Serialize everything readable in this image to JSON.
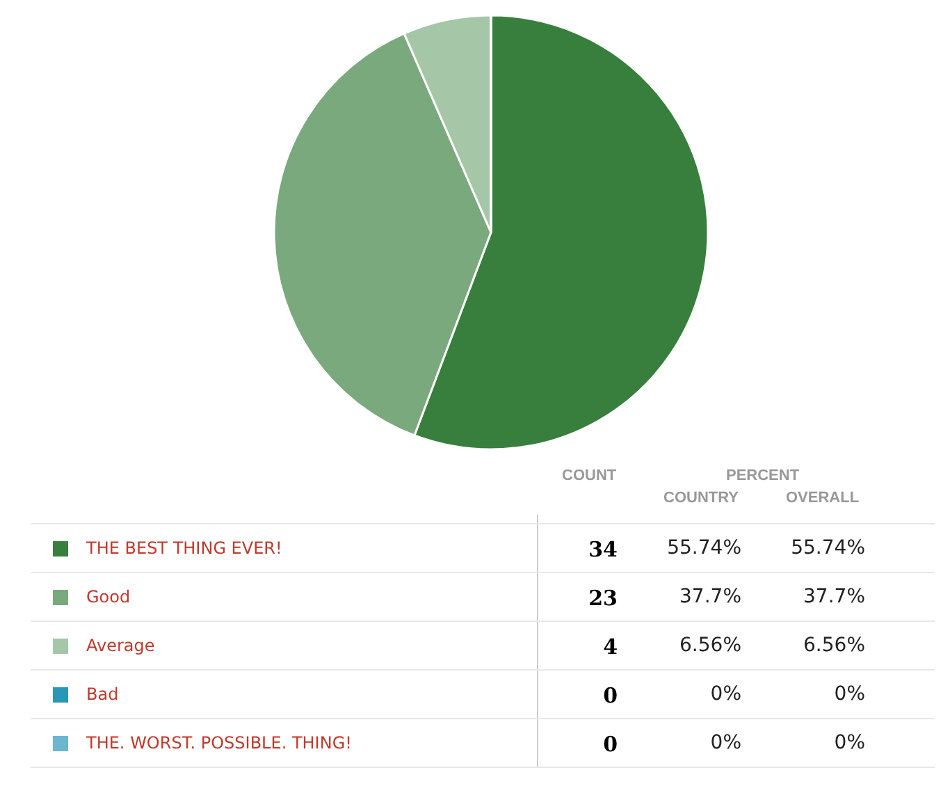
{
  "chart_data": {
    "type": "pie",
    "categories": [
      "THE BEST THING EVER!",
      "Good",
      "Average",
      "Bad",
      "THE. WORST. POSSIBLE. THING!"
    ],
    "values": [
      55.74,
      37.7,
      6.56,
      0,
      0
    ],
    "colors": [
      "#387f3d",
      "#7aa97e",
      "#a5c6a7",
      "#2a96b8",
      "#6ab7cf"
    ],
    "value_labels": [
      "55.74%",
      "37.7%",
      "6.56%",
      "0%",
      "0%"
    ],
    "legend": "bottom",
    "annotations": [
      "COUNT",
      "PERCENT",
      "COUNTRY",
      "OVERALL",
      "34",
      "23",
      "4",
      "0",
      "0"
    ]
  }
}
